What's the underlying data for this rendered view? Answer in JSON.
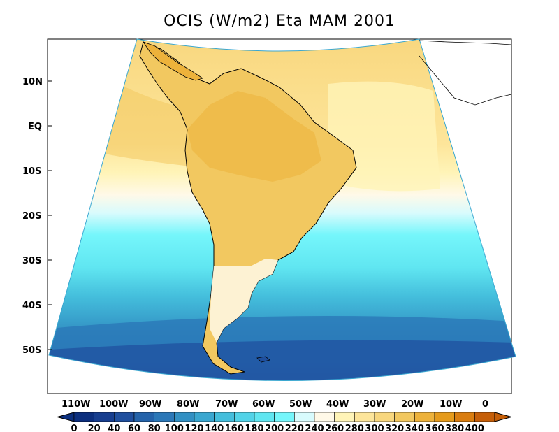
{
  "title": "OCIS (W/m2) Eta MAM 2001",
  "latitude_ticks": [
    "10N",
    "EQ",
    "10S",
    "20S",
    "30S",
    "40S",
    "50S"
  ],
  "longitude_ticks": [
    "110W",
    "100W",
    "90W",
    "80W",
    "70W",
    "60W",
    "50W",
    "40W",
    "30W",
    "20W",
    "10W",
    "0"
  ],
  "colorbar": {
    "labels": [
      "0",
      "20",
      "40",
      "60",
      "80",
      "100",
      "120",
      "140",
      "160",
      "180",
      "200",
      "220",
      "240",
      "260",
      "280",
      "300",
      "320",
      "340",
      "360",
      "380",
      "400"
    ],
    "colors": [
      "#0c2f7e",
      "#173e8f",
      "#1f4f9e",
      "#2463aa",
      "#2b78b8",
      "#3290c3",
      "#3aa7d0",
      "#44bedc",
      "#52d3e8",
      "#60e6f1",
      "#75f6fb",
      "#d8fbfd",
      "#fff9e8",
      "#fff4b8",
      "#fde59a",
      "#f8d77e",
      "#f2c860",
      "#edb23b",
      "#e59b1c",
      "#d97d10",
      "#c55e08"
    ]
  },
  "colors": {
    "ocean_south": "#2463aa",
    "ocean_mid": "#44bedc",
    "ocean_cyan": "#75f6fb",
    "subtropic": "#fff4b8",
    "tropic": "#f8d77e",
    "land": "#f2c860",
    "outside": "#ffffff",
    "coastline": "#000000"
  }
}
